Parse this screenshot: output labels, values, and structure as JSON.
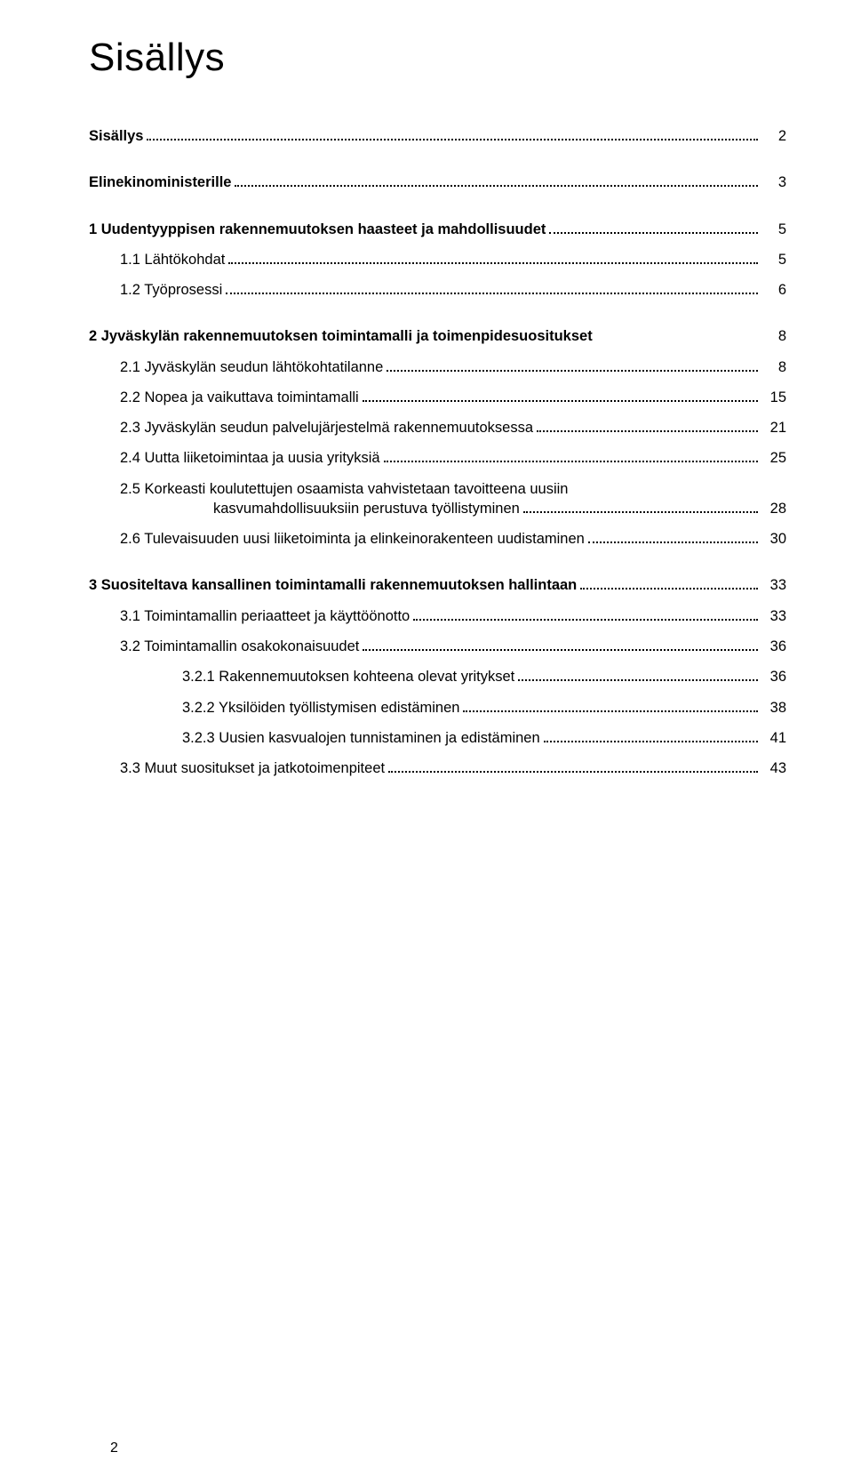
{
  "title": "Sisällys",
  "footer_page": "2",
  "typography": {
    "title_fontsize": 44,
    "body_fontsize": 16.5,
    "font_family": "Arial, Helvetica, sans-serif",
    "text_color": "#000000",
    "background_color": "#ffffff",
    "leader_style": "dotted",
    "leader_color": "#000000"
  },
  "entries": [
    {
      "label": "Sisällys",
      "page": "2",
      "bold": true,
      "indent": 0,
      "gap_after": true
    },
    {
      "label": "Elinekinoministerille",
      "page": "3",
      "bold": true,
      "indent": 0,
      "gap_after": true
    },
    {
      "label": "1 Uudentyyppisen rakennemuutoksen haasteet ja mahdollisuudet",
      "page": "5",
      "bold": true,
      "indent": 0
    },
    {
      "label": "1.1 Lähtökohdat",
      "page": "5",
      "bold": false,
      "indent": 1
    },
    {
      "label": "1.2 Työprosessi",
      "page": "6",
      "bold": false,
      "indent": 1,
      "gap_after": true
    },
    {
      "label": "2 Jyväskylän rakennemuutoksen toimintamalli ja toimenpidesuositukset",
      "page": "8",
      "bold": true,
      "indent": 0,
      "no_leader": true
    },
    {
      "label": "2.1 Jyväskylän seudun lähtökohtatilanne",
      "page": "8",
      "bold": false,
      "indent": 1
    },
    {
      "label": "2.2 Nopea ja vaikuttava toimintamalli",
      "page": "15",
      "bold": false,
      "indent": 1
    },
    {
      "label": "2.3 Jyväskylän seudun palvelujärjestelmä rakennemuutoksessa",
      "page": "21",
      "bold": false,
      "indent": 1
    },
    {
      "label": "2.4 Uutta liiketoimintaa ja uusia yrityksiä",
      "page": "25",
      "bold": false,
      "indent": 1
    },
    {
      "label_line1": "2.5 Korkeasti koulutettujen osaamista vahvistetaan tavoitteena uusiin",
      "label_line2": "kasvumahdollisuuksiin perustuva työllistyminen",
      "page": "28",
      "bold": false,
      "indent": 1,
      "multiline": true
    },
    {
      "label": "2.6 Tulevaisuuden uusi liiketoiminta ja elinkeinorakenteen uudistaminen",
      "page": "30",
      "bold": false,
      "indent": 1,
      "gap_after": true
    },
    {
      "label": "3 Suositeltava kansallinen toimintamalli rakennemuutoksen hallintaan",
      "page": "33",
      "bold": true,
      "indent": 0
    },
    {
      "label": "3.1 Toimintamallin periaatteet ja käyttöönotto",
      "page": "33",
      "bold": false,
      "indent": 1
    },
    {
      "label": "3.2 Toimintamallin osakokonaisuudet",
      "page": "36",
      "bold": false,
      "indent": 1
    },
    {
      "label": "3.2.1 Rakennemuutoksen kohteena olevat yritykset",
      "page": "36",
      "bold": false,
      "indent": 2
    },
    {
      "label": "3.2.2 Yksilöiden työllistymisen edistäminen",
      "page": "38",
      "bold": false,
      "indent": 2
    },
    {
      "label": "3.2.3 Uusien kasvualojen tunnistaminen ja edistäminen",
      "page": "41",
      "bold": false,
      "indent": 2
    },
    {
      "label": "3.3 Muut suositukset ja jatkotoimenpiteet",
      "page": "43",
      "bold": false,
      "indent": 1
    }
  ]
}
